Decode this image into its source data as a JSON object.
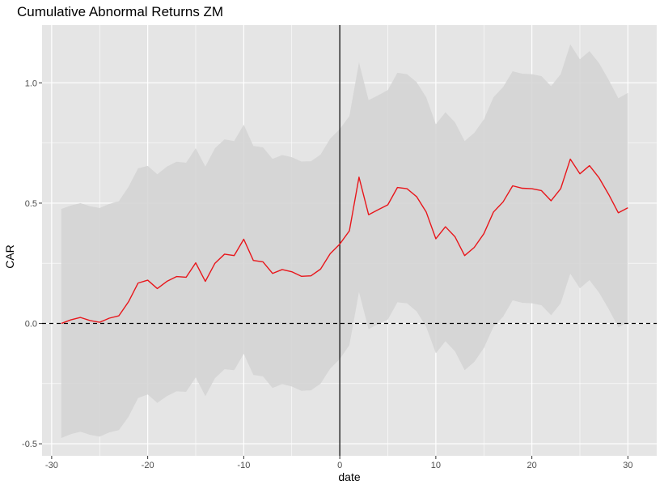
{
  "chart_data": {
    "type": "line",
    "title": "Cumulative Abnormal Returns ZM",
    "xlabel": "date",
    "ylabel": "CAR",
    "xlim": [
      -31,
      33
    ],
    "ylim": [
      -0.55,
      1.24
    ],
    "x_ticks": [
      -30,
      -20,
      -10,
      0,
      10,
      20,
      30
    ],
    "y_ticks": [
      -0.5,
      0.0,
      0.5,
      1.0
    ],
    "x_tick_labels": [
      "-30",
      "-20",
      "-10",
      "0",
      "10",
      "20",
      "30"
    ],
    "y_tick_labels": [
      "-0.5",
      "0.0",
      "0.5",
      "1.0"
    ],
    "grid": true,
    "vline_x": 0,
    "hline_y": 0,
    "colors": {
      "panel": "#e5e5e5",
      "grid": "#ffffff",
      "band": "#d3d3d3",
      "line": "#e8161b",
      "reference": "#000000"
    },
    "series": [
      {
        "x": [
          -29,
          -28,
          -27,
          -26,
          -25,
          -24,
          -23,
          -22,
          -21,
          -20,
          -19,
          -18,
          -17,
          -16,
          -15,
          -14,
          -13,
          -12,
          -11,
          -10,
          -9,
          -8,
          -7,
          -6,
          -5,
          -4,
          -3,
          -2,
          -1,
          0,
          1,
          2,
          3,
          4,
          5,
          6,
          7,
          8,
          9,
          10,
          11,
          12,
          13,
          14,
          15,
          16,
          17,
          18,
          19,
          20,
          21,
          22,
          23,
          24,
          25,
          26,
          27,
          28,
          29,
          30
        ],
        "values": [
          0.0,
          0.015,
          0.025,
          0.012,
          0.005,
          0.022,
          0.032,
          0.09,
          0.168,
          0.18,
          0.145,
          0.175,
          0.195,
          0.192,
          0.252,
          0.175,
          0.25,
          0.288,
          0.282,
          0.35,
          0.262,
          0.256,
          0.208,
          0.224,
          0.215,
          0.196,
          0.198,
          0.226,
          0.29,
          0.33,
          0.385,
          0.608,
          0.452,
          0.473,
          0.493,
          0.565,
          0.56,
          0.527,
          0.463,
          0.352,
          0.402,
          0.36,
          0.282,
          0.316,
          0.373,
          0.463,
          0.505,
          0.572,
          0.562,
          0.56,
          0.552,
          0.51,
          0.56,
          0.683,
          0.622,
          0.656,
          0.605,
          0.536,
          0.46,
          0.481
        ],
        "upper": [
          0.476,
          0.49,
          0.5,
          0.487,
          0.48,
          0.497,
          0.508,
          0.568,
          0.645,
          0.655,
          0.62,
          0.652,
          0.672,
          0.668,
          0.728,
          0.652,
          0.728,
          0.765,
          0.758,
          0.826,
          0.738,
          0.732,
          0.684,
          0.7,
          0.691,
          0.673,
          0.674,
          0.702,
          0.768,
          0.808,
          0.862,
          1.085,
          0.928,
          0.948,
          0.97,
          1.042,
          1.036,
          1.003,
          0.94,
          0.828,
          0.878,
          0.836,
          0.758,
          0.792,
          0.848,
          0.94,
          0.982,
          1.048,
          1.038,
          1.036,
          1.028,
          0.986,
          1.036,
          1.16,
          1.098,
          1.132,
          1.082,
          1.012,
          0.936,
          0.958
        ],
        "lower": [
          -0.476,
          -0.46,
          -0.45,
          -0.463,
          -0.47,
          -0.453,
          -0.443,
          -0.388,
          -0.31,
          -0.295,
          -0.33,
          -0.302,
          -0.282,
          -0.284,
          -0.224,
          -0.302,
          -0.228,
          -0.19,
          -0.194,
          -0.126,
          -0.214,
          -0.22,
          -0.268,
          -0.252,
          -0.262,
          -0.28,
          -0.278,
          -0.25,
          -0.188,
          -0.148,
          -0.09,
          0.131,
          -0.024,
          -0.002,
          0.016,
          0.088,
          0.084,
          0.05,
          -0.014,
          -0.124,
          -0.074,
          -0.116,
          -0.194,
          -0.16,
          -0.102,
          -0.014,
          0.028,
          0.096,
          0.086,
          0.084,
          0.076,
          0.034,
          0.084,
          0.207,
          0.146,
          0.18,
          0.128,
          0.06,
          -0.016,
          0.004
        ]
      }
    ]
  }
}
